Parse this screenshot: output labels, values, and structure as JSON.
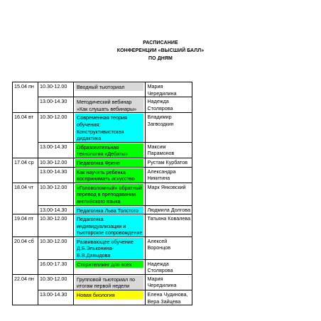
{
  "document": {
    "title_lines": [
      "РАСПИСАНИЕ",
      "КОНФЕРЕНЦИИ «ВЫСШИЙ БАЛЛ»",
      "ПО ДНЯМ"
    ]
  },
  "colors": {
    "cyan": "#00ffff",
    "green": "#00ff00",
    "grey": "#d9d9d9",
    "yellow": "#ffff00"
  },
  "schedule": [
    {
      "date": "15.04  пн",
      "time": "10.30-12.00",
      "topic": [
        "Вводный тьюториал"
      ],
      "highlight": "grey",
      "speaker": [
        "Мария",
        "Чередилина"
      ]
    },
    {
      "date": "",
      "time": "13.00-14.30",
      "topic": [
        "Методический вебинар",
        "«Как слушать вебинары»"
      ],
      "highlight": "grey",
      "speaker": [
        "Надежда",
        "Столярова"
      ]
    },
    {
      "date": "16.04  вт",
      "time": "10.30-12.00",
      "topic": [
        "Современная теория",
        "обучения:",
        "Конструктивистская",
        "дидактика"
      ],
      "highlight": "cyan",
      "speaker": [
        "Владимир",
        "Загвоздкин"
      ]
    },
    {
      "date": "",
      "time": "13.00-14.30",
      "topic": [
        "Образовательная",
        "технология «Дебаты»"
      ],
      "highlight": "green",
      "speaker": [
        "Максим",
        "Парамонов"
      ]
    },
    {
      "date": "17.04 ср",
      "time": "10.30-12.00",
      "topic": [
        "Педагогика Френе"
      ],
      "highlight": "green",
      "speaker": [
        "Рустам Курбатов"
      ]
    },
    {
      "date": "",
      "time": "13.00-14.30",
      "topic": [
        "Как научить ребенка",
        "воспринимать искусство"
      ],
      "highlight": "green",
      "speaker": [
        "Александра",
        "Никитина"
      ]
    },
    {
      "date": "18.04 чт",
      "time": "10.30-12.00",
      "topic": [
        "«Головоломный» обратный",
        "перевод в преподавании",
        "английского языка"
      ],
      "highlight": "green",
      "speaker": [
        "Марк Янковский"
      ]
    },
    {
      "date": "",
      "time": "13.00-14.30",
      "topic": [
        "Педагогика Льва Толстого"
      ],
      "highlight": "cyan",
      "speaker": [
        "Людмила Долгова"
      ]
    },
    {
      "date": "19.04 пт",
      "time": "10.30-12.00",
      "topic": [
        "Педагогика",
        "индивидуализации и",
        "тьюторское сопровождение"
      ],
      "highlight": "cyan",
      "speaker": [
        "Татьяна Ковалева"
      ]
    },
    {
      "date": "20.04 сб",
      "time": "10.30-12.00",
      "topic": [
        "Развивающее обучение",
        "Д.Б.Эльконина-",
        "В.В.Давыдова"
      ],
      "highlight": "cyan",
      "speaker": [
        "Алексей",
        "Воронцов"
      ]
    },
    {
      "date": "",
      "time": "16.00-17.30",
      "topic": [
        "Сторителлинг для всех"
      ],
      "highlight": "green",
      "speaker": [
        "Надежда",
        "Столярова"
      ]
    },
    {
      "date": "22.04  пн",
      "time": "10.30-12.00",
      "topic": [
        "Групповой тьюториал по",
        "итогам первой недели"
      ],
      "highlight": "grey",
      "speaker": [
        "Мария",
        "Чередилина"
      ]
    },
    {
      "date": "",
      "time": "13.00-14.30",
      "topic": [
        "Новая биология"
      ],
      "highlight": "yellow",
      "speaker": [
        "Елена Чудинова,",
        "Вера Зайцева"
      ]
    }
  ]
}
